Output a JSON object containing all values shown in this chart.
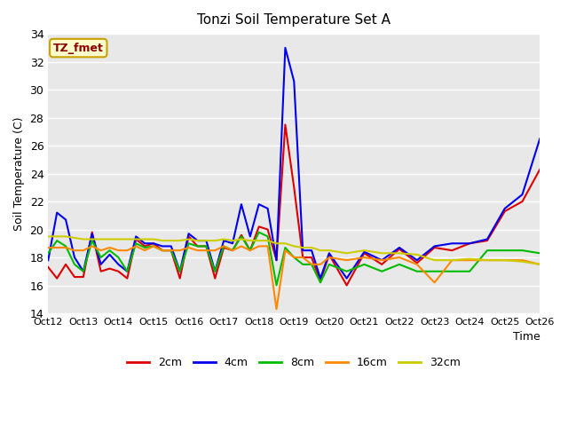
{
  "title": "Tonzi Soil Temperature Set A",
  "xlabel": "Time",
  "ylabel": "Soil Temperature (C)",
  "ylim": [
    14,
    34
  ],
  "yticks": [
    14,
    16,
    18,
    20,
    22,
    24,
    26,
    28,
    30,
    32,
    34
  ],
  "bg_color": "#e8e8e8",
  "annotation_text": "TZ_fmet",
  "annotation_color": "#8b0000",
  "annotation_bg": "#ffffcc",
  "annotation_border": "#c8a000",
  "xlim": [
    0,
    14
  ],
  "x_tick_positions": [
    0,
    1,
    2,
    3,
    4,
    5,
    6,
    7,
    8,
    9,
    10,
    11,
    12,
    13,
    14
  ],
  "x_tick_labels": [
    "Oct 12",
    "Oct 13",
    "Oct 14",
    "Oct 15",
    "Oct 16",
    "Oct 17",
    "Oct 18",
    "Oct 19",
    "Oct 20",
    "Oct 21",
    "Oct 22",
    "Oct 23",
    "Oct 24",
    "Oct 25",
    "Oct 26"
  ],
  "series": {
    "2cm": {
      "color": "#dd0000",
      "x": [
        0.0,
        0.25,
        0.5,
        0.75,
        1.0,
        1.25,
        1.5,
        1.75,
        2.0,
        2.25,
        2.5,
        2.75,
        3.0,
        3.25,
        3.5,
        3.75,
        4.0,
        4.25,
        4.5,
        4.75,
        5.0,
        5.25,
        5.5,
        5.75,
        6.0,
        6.25,
        6.5,
        6.75,
        7.0,
        7.25,
        7.5,
        7.75,
        8.0,
        8.5,
        9.0,
        9.5,
        10.0,
        10.5,
        11.0,
        11.5,
        12.0,
        12.5,
        13.0,
        13.5,
        14.0
      ],
      "y": [
        17.3,
        16.5,
        17.5,
        16.6,
        16.6,
        19.8,
        17.0,
        17.2,
        17.0,
        16.5,
        19.3,
        18.8,
        19.0,
        18.5,
        18.5,
        16.5,
        19.5,
        18.8,
        18.8,
        16.5,
        18.7,
        18.5,
        19.6,
        18.5,
        20.2,
        20.0,
        17.8,
        27.5,
        23.0,
        18.0,
        18.0,
        16.3,
        18.2,
        16.0,
        18.3,
        17.5,
        18.6,
        17.6,
        18.7,
        18.5,
        19.0,
        19.2,
        21.3,
        22.0,
        24.3
      ]
    },
    "4cm": {
      "color": "#0000ee",
      "x": [
        0.0,
        0.25,
        0.5,
        0.75,
        1.0,
        1.25,
        1.5,
        1.75,
        2.0,
        2.25,
        2.5,
        2.75,
        3.0,
        3.25,
        3.5,
        3.75,
        4.0,
        4.25,
        4.5,
        4.75,
        5.0,
        5.25,
        5.5,
        5.75,
        6.0,
        6.25,
        6.5,
        6.75,
        7.0,
        7.25,
        7.5,
        7.75,
        8.0,
        8.5,
        9.0,
        9.5,
        10.0,
        10.5,
        11.0,
        11.5,
        12.0,
        12.5,
        13.0,
        13.5,
        14.0
      ],
      "y": [
        17.8,
        21.2,
        20.7,
        18.0,
        17.0,
        19.7,
        17.5,
        18.2,
        17.5,
        17.0,
        19.5,
        19.0,
        19.0,
        18.8,
        18.8,
        17.0,
        19.7,
        19.2,
        19.2,
        17.0,
        19.2,
        19.0,
        21.8,
        19.5,
        21.8,
        21.5,
        17.8,
        33.0,
        30.6,
        18.5,
        18.5,
        16.5,
        18.3,
        16.5,
        18.4,
        17.8,
        18.7,
        17.8,
        18.8,
        19.0,
        19.0,
        19.3,
        21.5,
        22.5,
        26.5
      ]
    },
    "8cm": {
      "color": "#00bb00",
      "x": [
        0.0,
        0.25,
        0.5,
        0.75,
        1.0,
        1.25,
        1.5,
        1.75,
        2.0,
        2.25,
        2.5,
        2.75,
        3.0,
        3.25,
        3.5,
        3.75,
        4.0,
        4.25,
        4.5,
        4.75,
        5.0,
        5.25,
        5.5,
        5.75,
        6.0,
        6.25,
        6.5,
        6.75,
        7.0,
        7.25,
        7.5,
        7.75,
        8.0,
        8.5,
        9.0,
        9.5,
        10.0,
        10.5,
        11.0,
        11.5,
        12.0,
        12.5,
        13.0,
        13.5,
        14.0
      ],
      "y": [
        18.3,
        19.2,
        18.8,
        17.5,
        17.0,
        19.2,
        18.0,
        18.5,
        18.0,
        17.0,
        19.0,
        18.7,
        18.8,
        18.5,
        18.5,
        17.0,
        19.0,
        18.8,
        18.8,
        17.0,
        18.8,
        18.5,
        19.5,
        18.5,
        19.8,
        19.5,
        16.0,
        18.7,
        18.0,
        17.5,
        17.5,
        16.2,
        17.5,
        17.0,
        17.5,
        17.0,
        17.5,
        17.0,
        17.0,
        17.0,
        17.0,
        18.5,
        18.5,
        18.5,
        18.3
      ]
    },
    "16cm": {
      "color": "#ff8800",
      "x": [
        0.0,
        0.25,
        0.5,
        0.75,
        1.0,
        1.25,
        1.5,
        1.75,
        2.0,
        2.25,
        2.5,
        2.75,
        3.0,
        3.25,
        3.5,
        3.75,
        4.0,
        4.25,
        4.5,
        4.75,
        5.0,
        5.25,
        5.5,
        5.75,
        6.0,
        6.25,
        6.5,
        6.75,
        7.0,
        7.25,
        7.5,
        7.75,
        8.0,
        8.5,
        9.0,
        9.5,
        10.0,
        10.5,
        11.0,
        11.5,
        12.0,
        12.5,
        13.0,
        13.5,
        14.0
      ],
      "y": [
        18.7,
        18.7,
        18.7,
        18.5,
        18.5,
        18.8,
        18.5,
        18.7,
        18.5,
        18.5,
        18.8,
        18.5,
        18.8,
        18.5,
        18.5,
        18.5,
        18.7,
        18.5,
        18.5,
        18.5,
        18.8,
        18.5,
        18.8,
        18.5,
        18.8,
        18.8,
        14.3,
        18.5,
        18.0,
        18.0,
        17.5,
        17.5,
        18.0,
        17.8,
        18.0,
        17.8,
        18.0,
        17.5,
        16.2,
        17.8,
        17.8,
        17.8,
        17.8,
        17.8,
        17.5
      ]
    },
    "32cm": {
      "color": "#cccc00",
      "x": [
        0.0,
        0.25,
        0.5,
        0.75,
        1.0,
        1.25,
        1.5,
        1.75,
        2.0,
        2.25,
        2.5,
        2.75,
        3.0,
        3.25,
        3.5,
        3.75,
        4.0,
        4.25,
        4.5,
        4.75,
        5.0,
        5.25,
        5.5,
        5.75,
        6.0,
        6.25,
        6.5,
        6.75,
        7.0,
        7.25,
        7.5,
        7.75,
        8.0,
        8.5,
        9.0,
        9.5,
        10.0,
        10.5,
        11.0,
        11.5,
        12.0,
        12.5,
        13.0,
        13.5,
        14.0
      ],
      "y": [
        19.5,
        19.5,
        19.5,
        19.4,
        19.3,
        19.3,
        19.3,
        19.3,
        19.3,
        19.3,
        19.3,
        19.3,
        19.3,
        19.2,
        19.2,
        19.2,
        19.3,
        19.2,
        19.2,
        19.2,
        19.3,
        19.2,
        19.3,
        19.2,
        19.2,
        19.2,
        19.0,
        19.0,
        18.8,
        18.7,
        18.7,
        18.5,
        18.5,
        18.3,
        18.5,
        18.3,
        18.3,
        18.2,
        17.8,
        17.8,
        17.9,
        17.8,
        17.8,
        17.7,
        17.5
      ]
    }
  },
  "legend_labels": [
    "2cm",
    "4cm",
    "8cm",
    "16cm",
    "32cm"
  ],
  "legend_colors": [
    "#dd0000",
    "#0000ee",
    "#00bb00",
    "#ff8800",
    "#cccc00"
  ]
}
